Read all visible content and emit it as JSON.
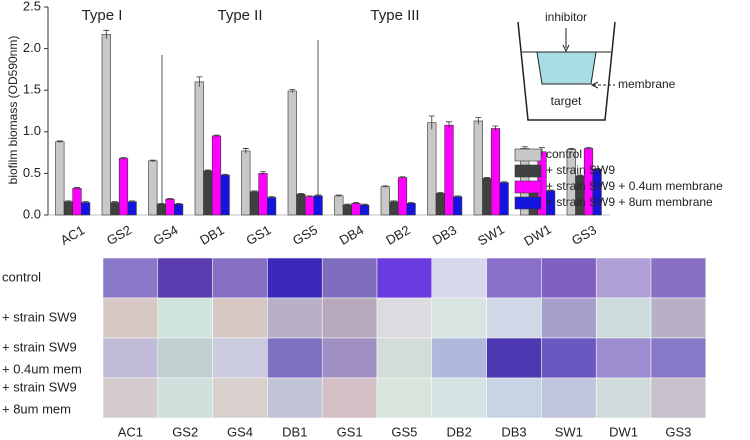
{
  "chart_data": {
    "type": "bar",
    "y_label": "biofilm biomass (OD590nm)",
    "categories": [
      "AC1",
      "GS2",
      "GS4",
      "DB1",
      "GS1",
      "GS5",
      "DB4",
      "DB2",
      "DB3",
      "SW1",
      "DW1",
      "GS3"
    ],
    "series": [
      {
        "name": "control",
        "color": "#c8c8c8",
        "values": [
          0.88,
          2.17,
          0.65,
          1.6,
          0.77,
          1.49,
          0.23,
          0.34,
          1.11,
          1.13,
          0.8,
          0.79
        ],
        "errors": [
          0.01,
          0.05,
          0.01,
          0.06,
          0.03,
          0.02,
          0.01,
          0.01,
          0.08,
          0.04,
          0.02,
          0.01
        ]
      },
      {
        "name": "+ strain SW9",
        "color": "#404040",
        "values": [
          0.16,
          0.15,
          0.13,
          0.53,
          0.28,
          0.25,
          0.12,
          0.16,
          0.26,
          0.44,
          0.34,
          0.47
        ],
        "errors": [
          0.01,
          0.01,
          0.01,
          0.01,
          0.01,
          0.01,
          0.01,
          0.01,
          0.01,
          0.01,
          0.01,
          0.01
        ]
      },
      {
        "name": "+ strain SW9 + 0.4um membrane",
        "color": "#ff00ff",
        "values": [
          0.32,
          0.68,
          0.19,
          0.95,
          0.5,
          0.22,
          0.14,
          0.45,
          1.08,
          1.04,
          0.76,
          0.8
        ],
        "errors": [
          0.01,
          0.01,
          0.01,
          0.01,
          0.02,
          0.01,
          0.01,
          0.01,
          0.04,
          0.03,
          0.05,
          0.01
        ]
      },
      {
        "name": "+ strain SW9 + 8um membrane",
        "color": "#1414e0",
        "values": [
          0.15,
          0.16,
          0.13,
          0.48,
          0.21,
          0.23,
          0.12,
          0.14,
          0.22,
          0.39,
          0.29,
          0.55
        ],
        "errors": [
          0.01,
          0.01,
          0.01,
          0.01,
          0.01,
          0.01,
          0.01,
          0.01,
          0.01,
          0.01,
          0.01,
          0.01
        ]
      }
    ],
    "ylim": [
      0,
      2.5
    ],
    "yticks": [
      {
        "value": 0,
        "label": "0.0"
      },
      {
        "value": 0.5,
        "label": "0.5"
      },
      {
        "value": 1,
        "label": "1.0"
      },
      {
        "value": 1.5,
        "label": "1.5"
      },
      {
        "value": 2,
        "label": "2.0"
      },
      {
        "value": 2.5,
        "label": "2.5"
      }
    ],
    "annotations": [
      "Type I",
      "Type II",
      "Type III"
    ],
    "legend": "right",
    "inset": {
      "inhibitor": "inhibitor",
      "membrane": "membrane",
      "target": "target"
    }
  },
  "image_panel": {
    "row_labels": [
      [
        "control"
      ],
      [
        "+ strain SW9"
      ],
      [
        "+ strain SW9",
        "+ 0.4um mem"
      ],
      [
        "+ strain SW9",
        "+ 8um mem"
      ]
    ],
    "column_labels": [
      "AC1",
      "GS2",
      "GS4",
      "DB1",
      "GS1",
      "GS5",
      "DB2",
      "DB3",
      "SW1",
      "DW1",
      "GS3"
    ]
  }
}
